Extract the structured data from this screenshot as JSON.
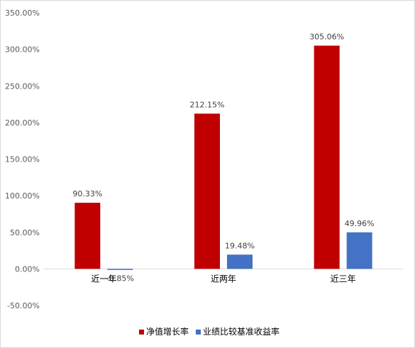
{
  "chart_data": {
    "type": "bar",
    "categories": [
      "近一年",
      "近两年",
      "近三年"
    ],
    "series": [
      {
        "name": "净值增长率",
        "color": "#c00000",
        "values": [
          90.33,
          212.15,
          305.06
        ],
        "labels": [
          "90.33%",
          "212.15%",
          "305.06%"
        ]
      },
      {
        "name": "业绩比较基准收益率",
        "color": "#4472c4",
        "values": [
          -0.85,
          19.48,
          49.96
        ],
        "labels": [
          "-0.85%",
          "19.48%",
          "49.96%"
        ]
      }
    ],
    "ylim": [
      -50,
      350
    ],
    "yticks": [
      350,
      300,
      250,
      200,
      150,
      100,
      50,
      0,
      -50
    ],
    "ytick_labels": [
      "350.00%",
      "300.00%",
      "250.00%",
      "200.00%",
      "150.00%",
      "100.00%",
      "50.00%",
      "0.00%",
      "-50.00%"
    ],
    "grid": false,
    "legend_position": "bottom-right",
    "title": "",
    "xlabel": "",
    "ylabel": ""
  }
}
